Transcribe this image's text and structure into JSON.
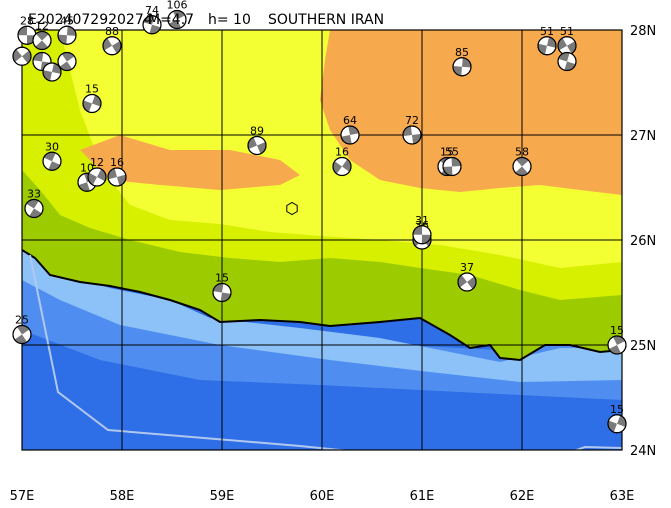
{
  "header": {
    "event_id": "E2024072920274",
    "magnitude_label": "M=4.7",
    "depth_label": "h= 10",
    "region": "SOUTHERN IRAN"
  },
  "axes": {
    "lon_labels": [
      "57E",
      "58E",
      "59E",
      "60E",
      "61E",
      "62E",
      "63E"
    ],
    "lat_labels": [
      "28N",
      "27N",
      "26N",
      "25N",
      "24N"
    ]
  },
  "colors": {
    "deep_sea": "#2e6ee6",
    "mid_sea": "#4f8ef0",
    "shallow_sea": "#8cc2f8",
    "lowland": "#9ccc00",
    "low_hill": "#d6f000",
    "highland": "#f4ff33",
    "mountain": "#f7a94e",
    "coast_line": "#000000",
    "boundary_line": "#b0c8f0",
    "mechanism_fill": "#7a7a7a"
  },
  "epicenter": {
    "lon": 59.7,
    "lat": 26.3,
    "symbol": "hexagon-icon"
  },
  "mechanisms": [
    {
      "lon": 57.05,
      "lat": 27.95,
      "depth": "28"
    },
    {
      "lon": 57.2,
      "lat": 27.9,
      "depth": "12"
    },
    {
      "lon": 57.45,
      "lat": 27.95,
      "depth": "45"
    },
    {
      "lon": 57.0,
      "lat": 27.75,
      "depth": ""
    },
    {
      "lon": 57.2,
      "lat": 27.7,
      "depth": ""
    },
    {
      "lon": 57.45,
      "lat": 27.7,
      "depth": ""
    },
    {
      "lon": 57.3,
      "lat": 27.6,
      "depth": ""
    },
    {
      "lon": 57.9,
      "lat": 27.85,
      "depth": "88"
    },
    {
      "lon": 58.3,
      "lat": 28.05,
      "depth": "74"
    },
    {
      "lon": 58.55,
      "lat": 28.1,
      "depth": "106"
    },
    {
      "lon": 57.7,
      "lat": 27.3,
      "depth": "15"
    },
    {
      "lon": 59.35,
      "lat": 26.9,
      "depth": "89"
    },
    {
      "lon": 57.3,
      "lat": 26.75,
      "depth": "30"
    },
    {
      "lon": 57.65,
      "lat": 26.55,
      "depth": "10"
    },
    {
      "lon": 57.75,
      "lat": 26.6,
      "depth": "12"
    },
    {
      "lon": 57.95,
      "lat": 26.6,
      "depth": "16"
    },
    {
      "lon": 57.12,
      "lat": 26.3,
      "depth": "33"
    },
    {
      "lon": 60.28,
      "lat": 27.0,
      "depth": "64"
    },
    {
      "lon": 60.2,
      "lat": 26.7,
      "depth": "16"
    },
    {
      "lon": 60.9,
      "lat": 27.0,
      "depth": "72"
    },
    {
      "lon": 61.25,
      "lat": 26.7,
      "depth": "15"
    },
    {
      "lon": 61.3,
      "lat": 26.7,
      "depth": "55"
    },
    {
      "lon": 61.0,
      "lat": 26.0,
      "depth": "36"
    },
    {
      "lon": 61.0,
      "lat": 26.05,
      "depth": "31"
    },
    {
      "lon": 62.0,
      "lat": 26.7,
      "depth": "58"
    },
    {
      "lon": 61.4,
      "lat": 27.65,
      "depth": "85"
    },
    {
      "lon": 61.45,
      "lat": 25.6,
      "depth": "37"
    },
    {
      "lon": 59.0,
      "lat": 25.5,
      "depth": "15"
    },
    {
      "lon": 57.0,
      "lat": 25.1,
      "depth": "25"
    },
    {
      "lon": 62.25,
      "lat": 27.85,
      "depth": "51"
    },
    {
      "lon": 62.45,
      "lat": 27.85,
      "depth": "51"
    },
    {
      "lon": 62.45,
      "lat": 27.7,
      "depth": ""
    },
    {
      "lon": 62.95,
      "lat": 25.0,
      "depth": "15"
    },
    {
      "lon": 62.95,
      "lat": 24.25,
      "depth": "15"
    }
  ]
}
